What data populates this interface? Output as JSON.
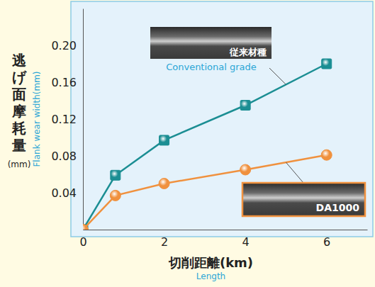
{
  "chart_data": {
    "type": "line",
    "x_label": "切削距離(km)",
    "x_label_en": "Length",
    "y_label": "逃げ面摩耗量",
    "y_label_unit": "(mm)",
    "y_label_en": "Flank wear width(mm)",
    "x": [
      0,
      0.8,
      2,
      4,
      6
    ],
    "series": [
      {
        "name": "従来材種",
        "name_en": "Conventional grade",
        "color": "#1b8e93",
        "marker": "square",
        "values": [
          0,
          0.059,
          0.097,
          0.135,
          0.18
        ]
      },
      {
        "name": "DA1000",
        "color": "#f0913e",
        "marker": "circle",
        "values": [
          0,
          0.037,
          0.05,
          0.065,
          0.081
        ]
      }
    ],
    "xlim": [
      0,
      7
    ],
    "xticks": [
      0,
      2,
      4,
      6
    ],
    "ylim": [
      0,
      0.24
    ],
    "yticks": [
      0.04,
      0.08,
      0.12,
      0.16,
      {
        "value": 0.2,
        "label": "0.20"
      }
    ],
    "grid": false
  }
}
